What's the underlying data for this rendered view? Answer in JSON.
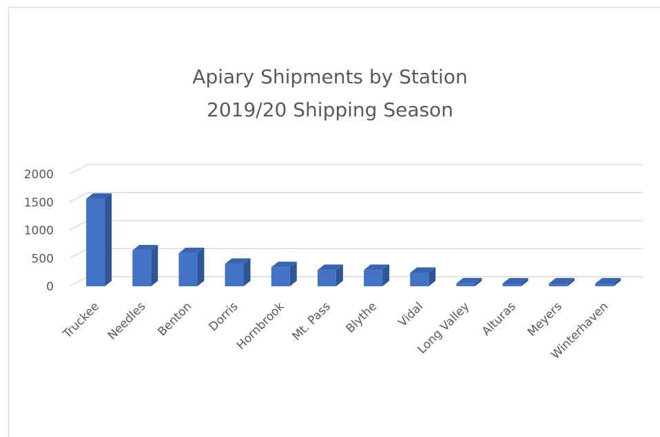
{
  "chart_data": {
    "type": "bar",
    "style": "3d-column",
    "title": "Apiary Shipments by Station",
    "subtitle": "2019/20 Shipping Season",
    "categories": [
      "Truckee",
      "Needles",
      "Benton",
      "Dorris",
      "Hornbrook",
      "Mt. Pass",
      "Blythe",
      "Vidal",
      "Long Valley",
      "Alturas",
      "Meyers",
      "Winterhaven"
    ],
    "values": [
      1560,
      640,
      590,
      400,
      340,
      290,
      290,
      240,
      50,
      5,
      5,
      5
    ],
    "ylim": [
      0,
      2000
    ],
    "yticks": [
      0,
      500,
      1000,
      1500,
      2000
    ],
    "xlabel": "",
    "ylabel": "",
    "grid": true,
    "legend": "none",
    "colors": {
      "bar_front": "#4472c4",
      "bar_side": "#2f5597",
      "bar_top": "#3b64b0",
      "grid": "#d9d9d9",
      "text": "#595959"
    }
  }
}
